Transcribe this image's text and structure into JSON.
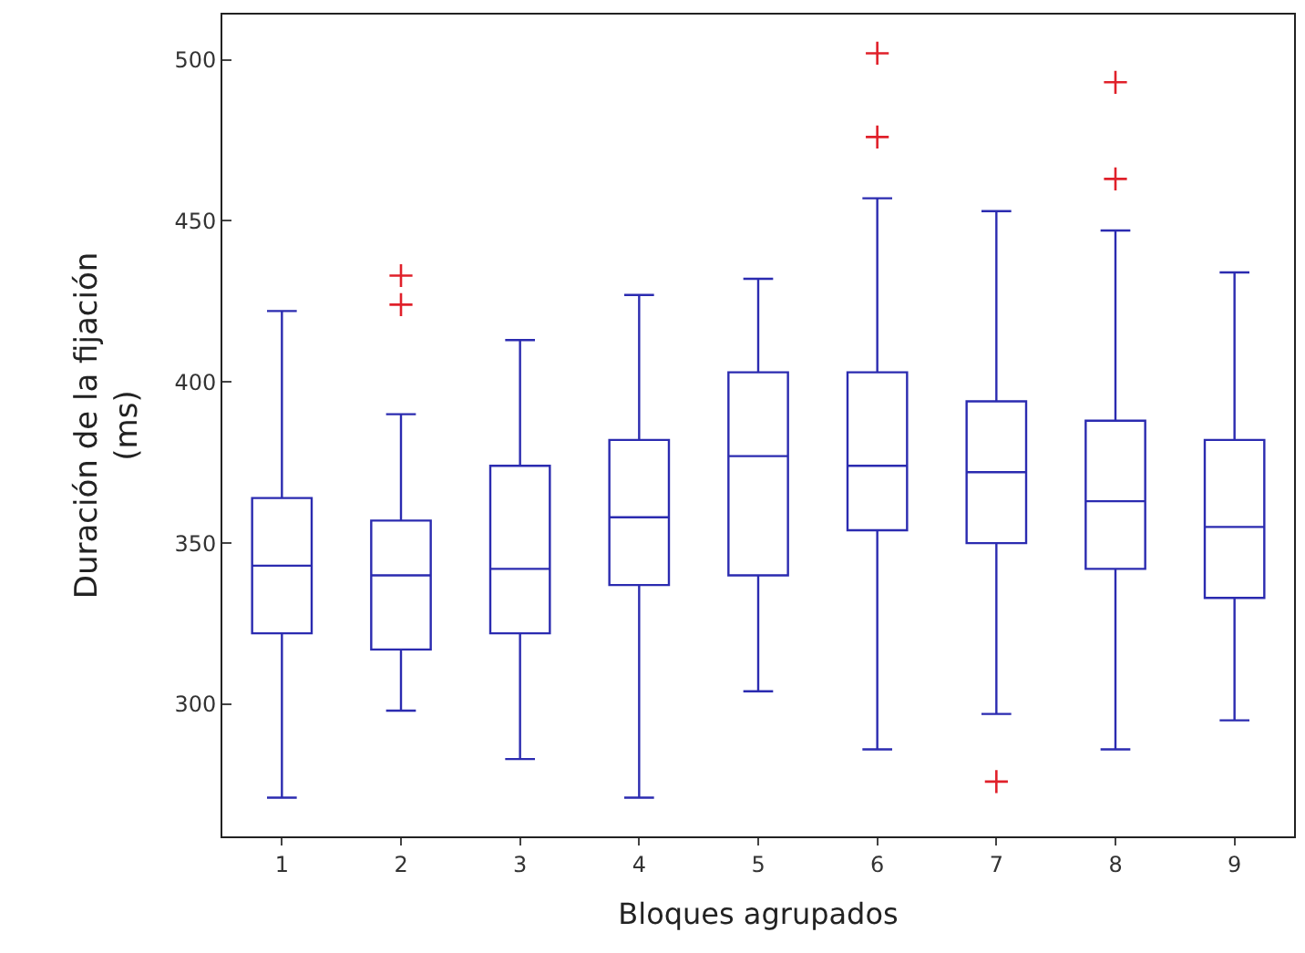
{
  "chart_data": {
    "type": "box",
    "xlabel": "Bloques agrupados",
    "ylabel": "Duración de la fijación\n(ms)",
    "categories": [
      "1",
      "2",
      "3",
      "4",
      "5",
      "6",
      "7",
      "8",
      "9"
    ],
    "series": [
      {
        "color": "#2b2bb0",
        "boxes": [
          {
            "low": 271,
            "q1": 322,
            "median": 343,
            "q3": 364,
            "high": 422
          },
          {
            "low": 298,
            "q1": 317,
            "median": 340,
            "q3": 357,
            "high": 390
          },
          {
            "low": 283,
            "q1": 322,
            "median": 342,
            "q3": 374,
            "high": 413
          },
          {
            "low": 271,
            "q1": 337,
            "median": 358,
            "q3": 382,
            "high": 427
          },
          {
            "low": 304,
            "q1": 340,
            "median": 377,
            "q3": 403,
            "high": 432
          },
          {
            "low": 286,
            "q1": 354,
            "median": 374,
            "q3": 403,
            "high": 457
          },
          {
            "low": 297,
            "q1": 350,
            "median": 372,
            "q3": 394,
            "high": 453
          },
          {
            "low": 286,
            "q1": 342,
            "median": 363,
            "q3": 388,
            "high": 447
          },
          {
            "low": 295,
            "q1": 333,
            "median": 355,
            "q3": 382,
            "high": 434
          }
        ]
      },
      {
        "type": "scatter",
        "color": "#e0202a",
        "marker": "cross",
        "x": [
          "2",
          "2",
          "6",
          "6",
          "7",
          "8",
          "8"
        ],
        "values": [
          433,
          424,
          502,
          476,
          276,
          493,
          463
        ]
      }
    ],
    "ylim": [
      259,
      514
    ],
    "yticks": [
      300,
      350,
      400,
      450,
      500
    ]
  }
}
